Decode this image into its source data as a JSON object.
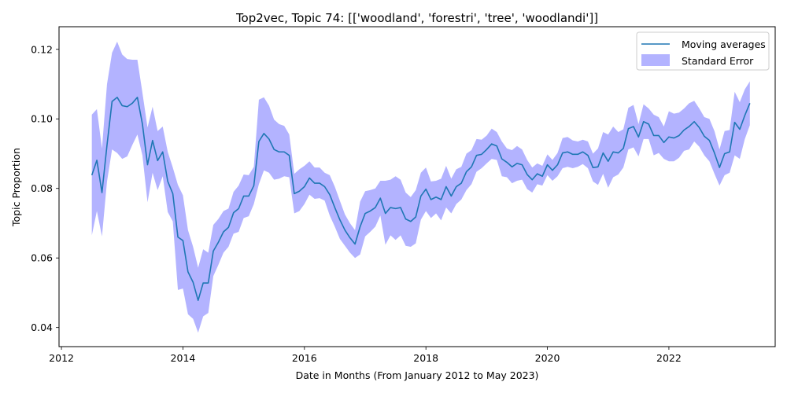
{
  "chart_data": {
    "type": "line",
    "title": "Top2vec, Topic 74: [['woodland', 'forestri', 'tree', 'woodlandi']]",
    "xlabel": "Date in Months (From January 2012 to May 2023)",
    "ylabel": "Topic Proportion",
    "xlim": [
      2011.96,
      2023.75
    ],
    "ylim": [
      0.0345,
      0.1265
    ],
    "xticks": [
      2012,
      2014,
      2016,
      2018,
      2020,
      2022
    ],
    "xtick_labels": [
      "2012",
      "2014",
      "2016",
      "2018",
      "2020",
      "2022"
    ],
    "yticks": [
      0.04,
      0.06,
      0.08,
      0.1,
      0.12
    ],
    "ytick_labels": [
      "0.04",
      "0.06",
      "0.08",
      "0.10",
      "0.12"
    ],
    "legend_position": "top-right",
    "colors": {
      "line": "#1f77b4",
      "band": "#b3b3ff"
    },
    "series": [
      {
        "name": "Moving averages",
        "x": [
          2012.5,
          2012.583,
          2012.667,
          2012.75,
          2012.833,
          2012.917,
          2013.0,
          2013.083,
          2013.167,
          2013.25,
          2013.333,
          2013.417,
          2013.5,
          2013.583,
          2013.667,
          2013.75,
          2013.833,
          2013.917,
          2014.0,
          2014.083,
          2014.167,
          2014.25,
          2014.333,
          2014.417,
          2014.5,
          2014.583,
          2014.667,
          2014.75,
          2014.833,
          2014.917,
          2015.0,
          2015.083,
          2015.167,
          2015.25,
          2015.333,
          2015.417,
          2015.5,
          2015.583,
          2015.667,
          2015.75,
          2015.833,
          2015.917,
          2016.0,
          2016.083,
          2016.167,
          2016.25,
          2016.333,
          2016.417,
          2016.5,
          2016.583,
          2016.667,
          2016.75,
          2016.833,
          2016.917,
          2017.0,
          2017.083,
          2017.167,
          2017.25,
          2017.333,
          2017.417,
          2017.5,
          2017.583,
          2017.667,
          2017.75,
          2017.833,
          2017.917,
          2018.0,
          2018.083,
          2018.167,
          2018.25,
          2018.333,
          2018.417,
          2018.5,
          2018.583,
          2018.667,
          2018.75,
          2018.833,
          2018.917,
          2019.0,
          2019.083,
          2019.167,
          2019.25,
          2019.333,
          2019.417,
          2019.5,
          2019.583,
          2019.667,
          2019.75,
          2019.833,
          2019.917,
          2020.0,
          2020.083,
          2020.167,
          2020.25,
          2020.333,
          2020.417,
          2020.5,
          2020.583,
          2020.667,
          2020.75,
          2020.833,
          2020.917,
          2021.0,
          2021.083,
          2021.167,
          2021.25,
          2021.333,
          2021.417,
          2021.5,
          2021.583,
          2021.667,
          2021.75,
          2021.833,
          2021.917,
          2022.0,
          2022.083,
          2022.167,
          2022.25,
          2022.333,
          2022.417,
          2022.5,
          2022.583,
          2022.667,
          2022.75,
          2022.833,
          2022.917,
          2023.0,
          2023.083,
          2023.167,
          2023.25,
          2023.333
        ],
        "values": [
          0.0838,
          0.0881,
          0.0788,
          0.0925,
          0.105,
          0.1062,
          0.1038,
          0.1035,
          0.1045,
          0.1062,
          0.0985,
          0.0868,
          0.0938,
          0.088,
          0.0905,
          0.082,
          0.0785,
          0.066,
          0.065,
          0.056,
          0.053,
          0.0478,
          0.0528,
          0.0528,
          0.062,
          0.0645,
          0.0675,
          0.0688,
          0.073,
          0.0742,
          0.0778,
          0.0778,
          0.0808,
          0.0935,
          0.0958,
          0.0942,
          0.0912,
          0.0905,
          0.0905,
          0.0895,
          0.0785,
          0.0792,
          0.0805,
          0.083,
          0.0815,
          0.0815,
          0.0805,
          0.0782,
          0.0745,
          0.071,
          0.068,
          0.0658,
          0.064,
          0.069,
          0.0728,
          0.0735,
          0.0745,
          0.0772,
          0.0728,
          0.0745,
          0.0742,
          0.0745,
          0.0712,
          0.0705,
          0.0718,
          0.0778,
          0.0798,
          0.0768,
          0.0775,
          0.0768,
          0.0805,
          0.0778,
          0.0805,
          0.0815,
          0.0848,
          0.0862,
          0.0895,
          0.0898,
          0.0912,
          0.0928,
          0.0922,
          0.0885,
          0.0875,
          0.0862,
          0.0872,
          0.0868,
          0.084,
          0.0825,
          0.0842,
          0.0835,
          0.0868,
          0.0852,
          0.0868,
          0.0902,
          0.0905,
          0.0898,
          0.0898,
          0.0905,
          0.0895,
          0.086,
          0.0862,
          0.0902,
          0.0878,
          0.0905,
          0.0902,
          0.0915,
          0.0972,
          0.0978,
          0.0948,
          0.0992,
          0.0985,
          0.0952,
          0.0952,
          0.0932,
          0.0948,
          0.0945,
          0.0952,
          0.0968,
          0.0978,
          0.0992,
          0.0975,
          0.095,
          0.0938,
          0.0902,
          0.086,
          0.09,
          0.0905,
          0.099,
          0.097,
          0.101,
          0.1045
        ]
      },
      {
        "name": "Standard Error",
        "x": [
          2012.5,
          2012.583,
          2012.667,
          2012.75,
          2012.833,
          2012.917,
          2013.0,
          2013.083,
          2013.167,
          2013.25,
          2013.333,
          2013.417,
          2013.5,
          2013.583,
          2013.667,
          2013.75,
          2013.833,
          2013.917,
          2014.0,
          2014.083,
          2014.167,
          2014.25,
          2014.333,
          2014.417,
          2014.5,
          2014.583,
          2014.667,
          2014.75,
          2014.833,
          2014.917,
          2015.0,
          2015.083,
          2015.167,
          2015.25,
          2015.333,
          2015.417,
          2015.5,
          2015.583,
          2015.667,
          2015.75,
          2015.833,
          2015.917,
          2016.0,
          2016.083,
          2016.167,
          2016.25,
          2016.333,
          2016.417,
          2016.5,
          2016.583,
          2016.667,
          2016.75,
          2016.833,
          2016.917,
          2017.0,
          2017.083,
          2017.167,
          2017.25,
          2017.333,
          2017.417,
          2017.5,
          2017.583,
          2017.667,
          2017.75,
          2017.833,
          2017.917,
          2018.0,
          2018.083,
          2018.167,
          2018.25,
          2018.333,
          2018.417,
          2018.5,
          2018.583,
          2018.667,
          2018.75,
          2018.833,
          2018.917,
          2019.0,
          2019.083,
          2019.167,
          2019.25,
          2019.333,
          2019.417,
          2019.5,
          2019.583,
          2019.667,
          2019.75,
          2019.833,
          2019.917,
          2020.0,
          2020.083,
          2020.167,
          2020.25,
          2020.333,
          2020.417,
          2020.5,
          2020.583,
          2020.667,
          2020.75,
          2020.833,
          2020.917,
          2021.0,
          2021.083,
          2021.167,
          2021.25,
          2021.333,
          2021.417,
          2021.5,
          2021.583,
          2021.667,
          2021.75,
          2021.833,
          2021.917,
          2022.0,
          2022.083,
          2022.167,
          2022.25,
          2022.333,
          2022.417,
          2022.5,
          2022.583,
          2022.667,
          2022.75,
          2022.833,
          2022.917,
          2023.0,
          2023.083,
          2023.167,
          2023.25,
          2023.333
        ],
        "upper": [
          0.1012,
          0.1028,
          0.0915,
          0.11,
          0.119,
          0.1222,
          0.1185,
          0.1172,
          0.117,
          0.117,
          0.1075,
          0.0975,
          0.1035,
          0.0965,
          0.0978,
          0.0905,
          0.086,
          0.081,
          0.078,
          0.068,
          0.0632,
          0.0572,
          0.0625,
          0.0615,
          0.0695,
          0.0712,
          0.0735,
          0.0742,
          0.079,
          0.0808,
          0.084,
          0.0838,
          0.0862,
          0.1055,
          0.1062,
          0.1038,
          0.0998,
          0.0985,
          0.098,
          0.0955,
          0.0842,
          0.0855,
          0.0865,
          0.0878,
          0.086,
          0.086,
          0.0845,
          0.0838,
          0.0805,
          0.0765,
          0.0725,
          0.07,
          0.068,
          0.0762,
          0.0792,
          0.0795,
          0.08,
          0.0822,
          0.0822,
          0.0825,
          0.0835,
          0.0825,
          0.0788,
          0.0775,
          0.0795,
          0.0845,
          0.086,
          0.082,
          0.0822,
          0.0828,
          0.0865,
          0.0828,
          0.0855,
          0.0862,
          0.09,
          0.091,
          0.0942,
          0.094,
          0.0952,
          0.0972,
          0.0962,
          0.0935,
          0.0915,
          0.091,
          0.0922,
          0.0912,
          0.0882,
          0.086,
          0.0872,
          0.0865,
          0.0898,
          0.0882,
          0.0902,
          0.0945,
          0.0948,
          0.0938,
          0.0935,
          0.094,
          0.0935,
          0.09,
          0.0915,
          0.0962,
          0.0955,
          0.0978,
          0.0962,
          0.097,
          0.1032,
          0.104,
          0.0985,
          0.1042,
          0.103,
          0.1012,
          0.1005,
          0.0978,
          0.1022,
          0.1015,
          0.1018,
          0.103,
          0.1045,
          0.1052,
          0.103,
          0.1005,
          0.1,
          0.0965,
          0.0912,
          0.0965,
          0.0968,
          0.1078,
          0.1048,
          0.1085,
          0.1108
        ],
        "lower": [
          0.0665,
          0.0735,
          0.0662,
          0.082,
          0.0912,
          0.0902,
          0.0885,
          0.0892,
          0.0925,
          0.0955,
          0.0895,
          0.076,
          0.0845,
          0.0795,
          0.0835,
          0.0732,
          0.0705,
          0.0508,
          0.0512,
          0.0438,
          0.0425,
          0.0385,
          0.0432,
          0.0442,
          0.0548,
          0.058,
          0.0615,
          0.0632,
          0.067,
          0.0675,
          0.0715,
          0.072,
          0.0755,
          0.0812,
          0.0852,
          0.0845,
          0.0825,
          0.0828,
          0.0835,
          0.0832,
          0.0728,
          0.0735,
          0.0755,
          0.0782,
          0.077,
          0.0772,
          0.0765,
          0.0722,
          0.069,
          0.0655,
          0.0635,
          0.0615,
          0.06,
          0.061,
          0.0662,
          0.0675,
          0.069,
          0.0722,
          0.0638,
          0.0665,
          0.0652,
          0.0665,
          0.0635,
          0.0632,
          0.0642,
          0.071,
          0.0735,
          0.0715,
          0.0728,
          0.0708,
          0.0745,
          0.0728,
          0.0755,
          0.0768,
          0.0795,
          0.0812,
          0.0848,
          0.0858,
          0.0872,
          0.0885,
          0.0882,
          0.0835,
          0.0832,
          0.0815,
          0.0822,
          0.0825,
          0.0798,
          0.0788,
          0.0812,
          0.0808,
          0.0838,
          0.0822,
          0.0835,
          0.0858,
          0.0862,
          0.0858,
          0.0862,
          0.087,
          0.0858,
          0.082,
          0.081,
          0.0842,
          0.0802,
          0.0832,
          0.084,
          0.086,
          0.0912,
          0.0918,
          0.0892,
          0.0942,
          0.0942,
          0.0895,
          0.0902,
          0.0885,
          0.0878,
          0.0878,
          0.0888,
          0.0908,
          0.0912,
          0.0935,
          0.092,
          0.0895,
          0.0878,
          0.0842,
          0.0808,
          0.0838,
          0.0845,
          0.0895,
          0.0885,
          0.0942,
          0.0982
        ]
      }
    ]
  }
}
